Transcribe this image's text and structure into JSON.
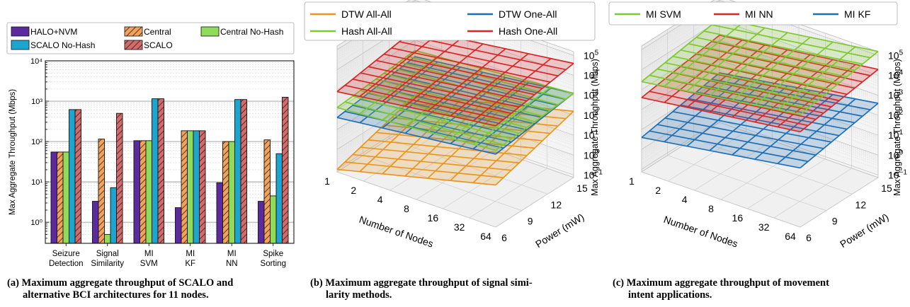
{
  "chart_data": [
    {
      "type": "bar",
      "ylabel": "Max Aggregate Throughput (Mbps)",
      "yscale": "log",
      "ylim": [
        0.3,
        10000
      ],
      "yticks": [
        "10⁰",
        "10¹",
        "10²",
        "10³",
        "10⁴"
      ],
      "grid": true,
      "legend_position": "top",
      "categories": [
        {
          "line1": "Seizure",
          "line2": "Detection"
        },
        {
          "line1": "Signal",
          "line2": "Similarity"
        },
        {
          "line1": "MI",
          "line2": "SVM"
        },
        {
          "line1": "MI",
          "line2": "KF"
        },
        {
          "line1": "MI",
          "line2": "NN"
        },
        {
          "line1": "Spike",
          "line2": "Sorting"
        }
      ],
      "series": [
        {
          "name": "HALO+NVM",
          "color": "#5b2a9e",
          "pattern": "solid",
          "values": [
            55,
            3.3,
            105,
            2.3,
            9.5,
            3.3
          ]
        },
        {
          "name": "Central",
          "color": "#f4a259",
          "pattern": "hatch",
          "values": [
            55,
            115,
            105,
            185,
            100,
            110
          ]
        },
        {
          "name": "Central No-Hash",
          "color": "#90dc5a",
          "pattern": "solid",
          "values": [
            55,
            0.5,
            105,
            185,
            100,
            4.5
          ]
        },
        {
          "name": "SCALO No-Hash",
          "color": "#1ea5cf",
          "pattern": "solid",
          "values": [
            620,
            7.2,
            1150,
            185,
            1100,
            50
          ]
        },
        {
          "name": "SCALO",
          "color": "#d46a6a",
          "pattern": "hatch",
          "values": [
            620,
            500,
            1150,
            185,
            1100,
            1250
          ]
        }
      ],
      "caption_label": "(a)",
      "caption_lines": [
        "Maximum aggregate throughput of SCALO and",
        "alternative BCI architectures for 11 nodes."
      ]
    },
    {
      "type": "surface3d",
      "xlabel": "Number of Nodes",
      "ylabel": "Power (mW)",
      "zlabel": "Max Aggregate Throughput (Mbps)",
      "zscale": "log",
      "zticks": [
        "10⁻¹",
        "10⁰",
        "10¹",
        "10²",
        "10³",
        "10⁴",
        "10⁵"
      ],
      "xticks": [
        "1",
        "2",
        "4",
        "8",
        "16",
        "32",
        "64"
      ],
      "yticks": [
        "6",
        "9",
        "12",
        "15"
      ],
      "grid": true,
      "legend_position": "top",
      "series": [
        {
          "name": "DTW All-All",
          "color": "#e8971e",
          "log10_min": -1.0,
          "log10_max": 2.2
        },
        {
          "name": "DTW One-All",
          "color": "#1f6fb5",
          "log10_min": 1.6,
          "log10_max": 3.1
        },
        {
          "name": "Hash All-All",
          "color": "#7ec832",
          "log10_min": 2.1,
          "log10_max": 3.1
        },
        {
          "name": "Hash One-All",
          "color": "#d62828",
          "log10_min": 2.9,
          "log10_max": 4.6
        }
      ],
      "caption_label": "(b)",
      "caption_lines": [
        "Maximum aggregate throughput of signal simi-",
        "larity methods."
      ]
    },
    {
      "type": "surface3d",
      "xlabel": "Number of Nodes",
      "ylabel": "Power (mW)",
      "zlabel": "Max Aggregate Throughput (Mbps)",
      "zscale": "log",
      "zticks": [
        "10⁻¹",
        "10⁰",
        "10¹",
        "10²",
        "10³",
        "10⁴",
        "10⁵"
      ],
      "xticks": [
        "1",
        "2",
        "4",
        "8",
        "16",
        "32",
        "64"
      ],
      "yticks": [
        "6",
        "9",
        "12",
        "15"
      ],
      "grid": true,
      "legend_position": "top",
      "series": [
        {
          "name": "MI SVM",
          "color": "#7ec832",
          "log10_min": 3.4,
          "log10_max": 5.2
        },
        {
          "name": "MI NN",
          "color": "#d62828",
          "log10_min": 2.6,
          "log10_max": 4.3
        },
        {
          "name": "MI KF",
          "color": "#1f6fb5",
          "log10_min": 0.6,
          "log10_max": 2.6
        }
      ],
      "caption_label": "(c)",
      "caption_lines": [
        "Maximum aggregate throughput of movement",
        "intent applications."
      ]
    }
  ]
}
